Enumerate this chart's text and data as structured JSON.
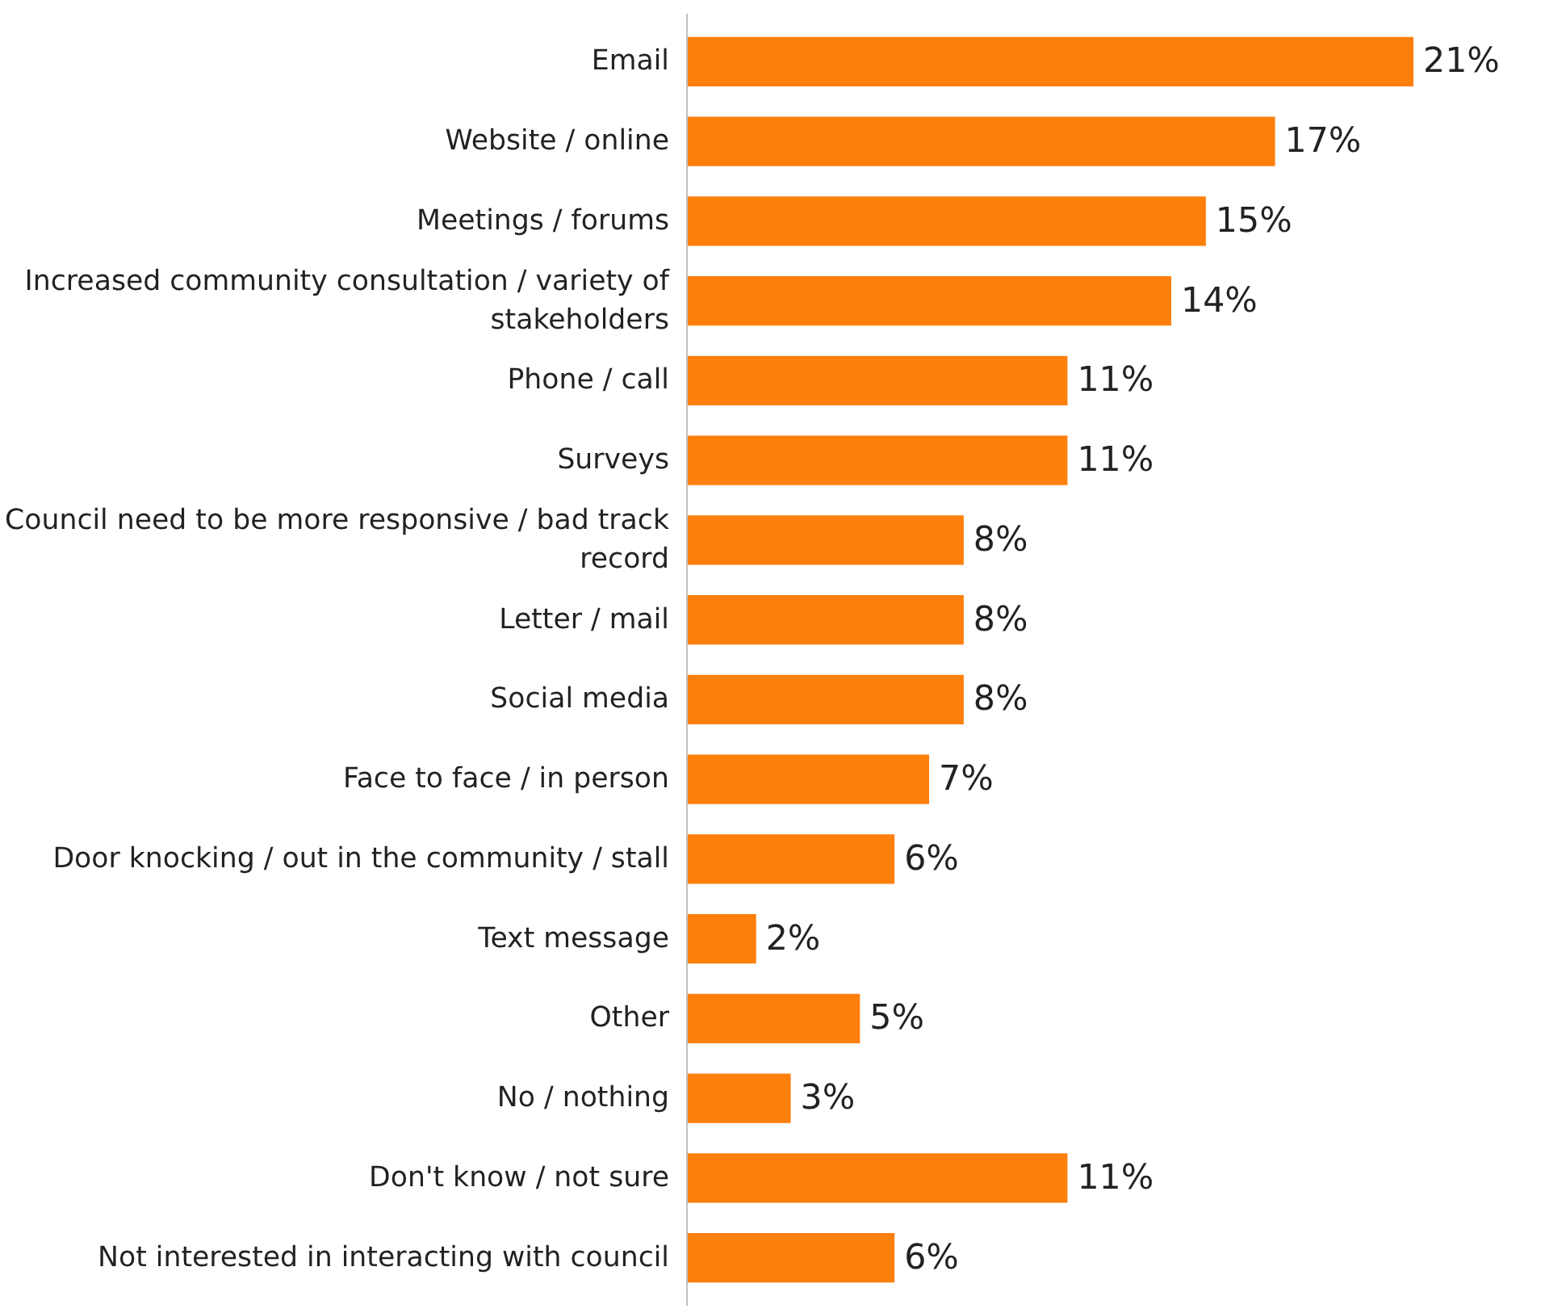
{
  "chart_data": {
    "type": "bar",
    "orientation": "horizontal",
    "categories": [
      "Email",
      "Website / online",
      "Meetings / forums",
      "Increased community consultation / variety of stakeholders",
      "Phone / call",
      "Surveys",
      "Council need to be more responsive / bad track record",
      "Letter / mail",
      "Social media",
      "Face to face / in person",
      "Door knocking / out in the community / stall",
      "Text message",
      "Other",
      "No / nothing",
      "Don't know / not sure",
      "Not interested in interacting with council"
    ],
    "values": [
      21,
      17,
      15,
      14,
      11,
      11,
      8,
      8,
      8,
      7,
      6,
      2,
      5,
      3,
      11,
      6
    ],
    "value_labels": [
      "21%",
      "17%",
      "15%",
      "14%",
      "11%",
      "11%",
      "8%",
      "8%",
      "8%",
      "7%",
      "6%",
      "2%",
      "5%",
      "3%",
      "11%",
      "6%"
    ],
    "color": "#fd7f0c"
  }
}
